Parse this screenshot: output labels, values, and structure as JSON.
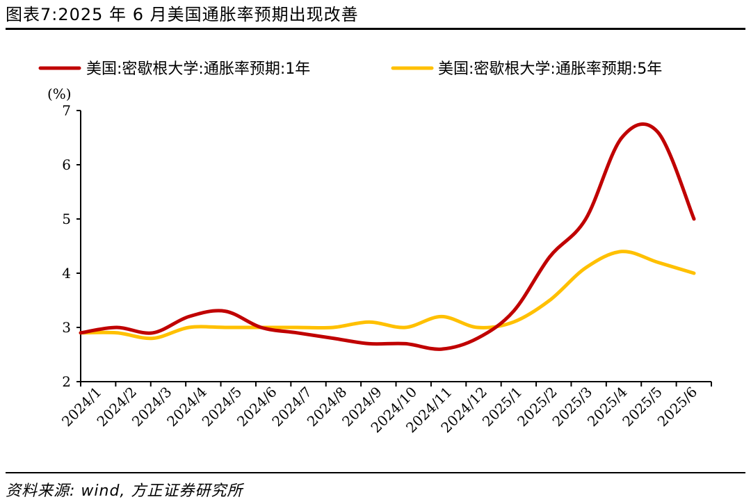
{
  "title": "图表7:2025 年 6 月美国通胀率预期出现改善",
  "source": "资料来源: wind, 方正证券研究所",
  "chart_data": {
    "type": "line",
    "ylabel": "(%)",
    "xlabel": "",
    "ylim": [
      2,
      7
    ],
    "yticks": [
      2,
      3,
      4,
      5,
      6,
      7
    ],
    "grid": false,
    "legend_position": "top",
    "categories": [
      "2024/1",
      "2024/2",
      "2024/3",
      "2024/4",
      "2024/5",
      "2024/6",
      "2024/7",
      "2024/8",
      "2024/9",
      "2024/10",
      "2024/11",
      "2024/12",
      "2025/1",
      "2025/2",
      "2025/3",
      "2025/4",
      "2025/5",
      "2025/6"
    ],
    "series": [
      {
        "name": "美国:密歇根大学:通胀率预期:1年",
        "color": "#C00000",
        "values": [
          2.9,
          3.0,
          2.9,
          3.2,
          3.3,
          3.0,
          2.9,
          2.8,
          2.7,
          2.7,
          2.6,
          2.8,
          3.3,
          4.3,
          5.0,
          6.5,
          6.6,
          5.0
        ]
      },
      {
        "name": "美国:密歇根大学:通胀率预期:5年",
        "color": "#FFC000",
        "values": [
          2.9,
          2.9,
          2.8,
          3.0,
          3.0,
          3.0,
          3.0,
          3.0,
          3.1,
          3.0,
          3.2,
          3.0,
          3.1,
          3.5,
          4.1,
          4.4,
          4.2,
          4.0
        ]
      }
    ]
  }
}
